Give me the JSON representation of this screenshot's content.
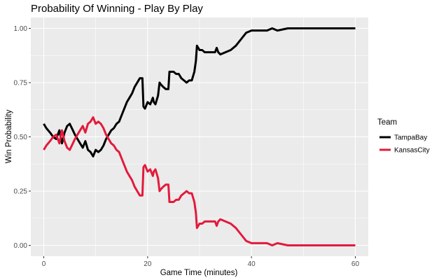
{
  "chart_data": {
    "type": "line",
    "title": "Probability Of Winning - Play By Play",
    "xlabel": "Game Time (minutes)",
    "ylabel": "Win Probability",
    "xlim": [
      -2.5,
      62.5
    ],
    "ylim": [
      -0.05,
      1.05
    ],
    "x_ticks": [
      0,
      20,
      40,
      60
    ],
    "x_tick_labels": [
      "0",
      "20",
      "40",
      "60"
    ],
    "y_ticks": [
      0,
      0.25,
      0.5,
      0.75,
      1.0
    ],
    "y_tick_labels": [
      "0.00",
      "0.25",
      "0.50",
      "0.75",
      "1.00"
    ],
    "grid": true,
    "legend": {
      "title": "Team",
      "position": "right"
    },
    "series": [
      {
        "name": "TampaBay",
        "color": "#000000",
        "x": [
          0,
          0.5,
          1.2,
          1.8,
          2.4,
          3.0,
          3.5,
          4.0,
          4.5,
          5.0,
          5.6,
          6.0,
          6.5,
          7.0,
          7.5,
          8.0,
          8.5,
          9.0,
          9.5,
          10.0,
          10.5,
          11.0,
          11.5,
          12.0,
          12.5,
          13.0,
          13.5,
          14.0,
          14.5,
          15.0,
          15.5,
          16.0,
          16.5,
          17.0,
          17.5,
          18.0,
          18.5,
          19.0,
          19.2,
          19.5,
          20.0,
          20.5,
          21.0,
          21.2,
          21.5,
          22.0,
          22.3,
          22.6,
          23.0,
          23.5,
          24.0,
          24.2,
          24.5,
          25.0,
          25.5,
          26.0,
          26.5,
          27.0,
          27.5,
          28.0,
          28.5,
          29.0,
          29.3,
          29.5,
          30.0,
          30.5,
          31.0,
          32.0,
          33.0,
          33.3,
          33.6,
          34.0,
          35.0,
          36.0,
          37.0,
          38.0,
          39.0,
          40.0,
          41.0,
          42.0,
          43.0,
          44.0,
          45.0,
          47.0,
          50.0,
          55.0,
          60.0
        ],
        "y": [
          0.56,
          0.54,
          0.52,
          0.5,
          0.49,
          0.53,
          0.47,
          0.52,
          0.55,
          0.56,
          0.53,
          0.51,
          0.49,
          0.47,
          0.45,
          0.48,
          0.44,
          0.43,
          0.41,
          0.44,
          0.43,
          0.44,
          0.46,
          0.49,
          0.51,
          0.53,
          0.54,
          0.56,
          0.57,
          0.6,
          0.63,
          0.66,
          0.68,
          0.7,
          0.73,
          0.75,
          0.77,
          0.77,
          0.64,
          0.63,
          0.66,
          0.65,
          0.68,
          0.66,
          0.65,
          0.69,
          0.75,
          0.74,
          0.73,
          0.72,
          0.72,
          0.8,
          0.8,
          0.8,
          0.79,
          0.79,
          0.77,
          0.76,
          0.75,
          0.76,
          0.76,
          0.8,
          0.85,
          0.92,
          0.9,
          0.9,
          0.89,
          0.89,
          0.89,
          0.91,
          0.89,
          0.88,
          0.89,
          0.9,
          0.92,
          0.95,
          0.98,
          0.99,
          0.99,
          0.99,
          0.99,
          1.0,
          0.99,
          1.0,
          1.0,
          1.0,
          1.0
        ]
      },
      {
        "name": "KansasCity",
        "color": "#e31a3c",
        "x": [
          0,
          0.5,
          1.2,
          1.8,
          2.4,
          3.0,
          3.5,
          4.0,
          4.5,
          5.0,
          5.6,
          6.0,
          6.5,
          7.0,
          7.5,
          8.0,
          8.5,
          9.0,
          9.5,
          10.0,
          10.5,
          11.0,
          11.5,
          12.0,
          12.5,
          13.0,
          13.5,
          14.0,
          14.5,
          15.0,
          15.5,
          16.0,
          16.5,
          17.0,
          17.5,
          18.0,
          18.5,
          19.0,
          19.2,
          19.5,
          20.0,
          20.5,
          21.0,
          21.2,
          21.5,
          22.0,
          22.3,
          22.6,
          23.0,
          23.5,
          24.0,
          24.2,
          24.5,
          25.0,
          25.5,
          26.0,
          26.5,
          27.0,
          27.5,
          28.0,
          28.5,
          29.0,
          29.3,
          29.5,
          30.0,
          30.5,
          31.0,
          32.0,
          33.0,
          33.3,
          33.6,
          34.0,
          35.0,
          36.0,
          37.0,
          38.0,
          39.0,
          40.0,
          41.0,
          42.0,
          43.0,
          44.0,
          45.0,
          47.0,
          50.0,
          55.0,
          60.0
        ],
        "y": [
          0.44,
          0.46,
          0.48,
          0.5,
          0.51,
          0.47,
          0.53,
          0.48,
          0.45,
          0.44,
          0.47,
          0.49,
          0.51,
          0.53,
          0.55,
          0.52,
          0.56,
          0.57,
          0.59,
          0.56,
          0.57,
          0.56,
          0.54,
          0.51,
          0.49,
          0.47,
          0.46,
          0.44,
          0.43,
          0.4,
          0.37,
          0.34,
          0.32,
          0.3,
          0.27,
          0.25,
          0.23,
          0.23,
          0.36,
          0.37,
          0.34,
          0.35,
          0.32,
          0.34,
          0.35,
          0.31,
          0.25,
          0.26,
          0.27,
          0.28,
          0.28,
          0.2,
          0.2,
          0.2,
          0.21,
          0.21,
          0.23,
          0.24,
          0.25,
          0.24,
          0.24,
          0.2,
          0.15,
          0.08,
          0.1,
          0.1,
          0.11,
          0.11,
          0.11,
          0.09,
          0.11,
          0.12,
          0.11,
          0.1,
          0.08,
          0.05,
          0.02,
          0.01,
          0.01,
          0.01,
          0.01,
          0.0,
          0.01,
          0.0,
          0.0,
          0.0,
          0.0
        ]
      }
    ]
  }
}
